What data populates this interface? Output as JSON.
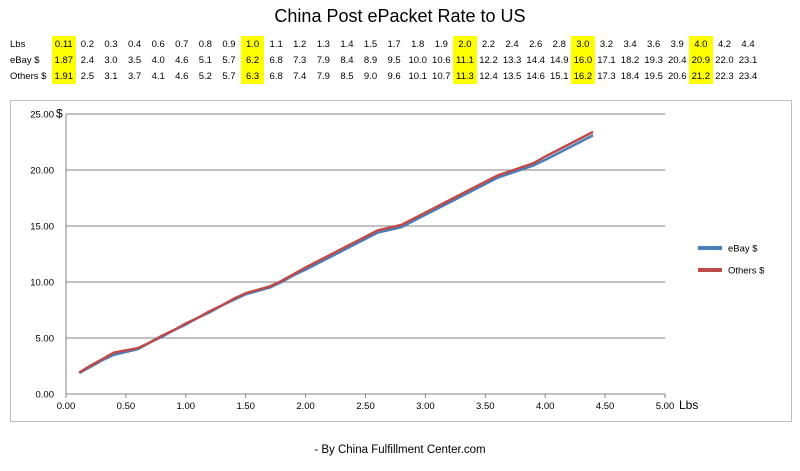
{
  "title": "China Post ePacket Rate to US",
  "footer": "- By China Fulfillment Center.com",
  "table": {
    "row_labels": [
      "Lbs",
      "eBay $",
      "Others $"
    ],
    "lbs": [
      "0.11",
      "0.2",
      "0.3",
      "0.4",
      "0.6",
      "0.7",
      "0.8",
      "0.9",
      "1.0",
      "1.1",
      "1.2",
      "1.3",
      "1.4",
      "1.5",
      "1.7",
      "1.8",
      "1.9",
      "2.0",
      "2.2",
      "2.4",
      "2.6",
      "2.8",
      "3.0",
      "3.2",
      "3.4",
      "3.6",
      "3.9",
      "4.0",
      "4.2",
      "4.4"
    ],
    "ebay": [
      "1.87",
      "2.4",
      "3.0",
      "3.5",
      "4.0",
      "4.6",
      "5.1",
      "5.7",
      "6.2",
      "6.8",
      "7.3",
      "7.9",
      "8.4",
      "8.9",
      "9.5",
      "10.0",
      "10.6",
      "11.1",
      "12.2",
      "13.3",
      "14.4",
      "14.9",
      "16.0",
      "17.1",
      "18.2",
      "19.3",
      "20.4",
      "20.9",
      "22.0",
      "23.1"
    ],
    "others": [
      "1.91",
      "2.5",
      "3.1",
      "3.7",
      "4.1",
      "4.6",
      "5.2",
      "5.7",
      "6.3",
      "6.8",
      "7.4",
      "7.9",
      "8.5",
      "9.0",
      "9.6",
      "10.1",
      "10.7",
      "11.3",
      "12.4",
      "13.5",
      "14.6",
      "15.1",
      "16.2",
      "17.3",
      "18.4",
      "19.5",
      "20.6",
      "21.2",
      "22.3",
      "23.4"
    ],
    "highlight_columns": [
      0,
      8,
      17,
      22,
      27
    ],
    "highlight_color": "#ffff00"
  },
  "chart_data": {
    "type": "line",
    "xlabel": "Lbs",
    "ylabel": "$",
    "xlim": [
      0,
      5
    ],
    "ylim": [
      0,
      25
    ],
    "x_ticks": [
      "0.00",
      "0.50",
      "1.00",
      "1.50",
      "2.00",
      "2.50",
      "3.00",
      "3.50",
      "4.00",
      "4.50",
      "5.00"
    ],
    "y_ticks": [
      "0.00",
      "5.00",
      "10.00",
      "15.00",
      "20.00",
      "25.00"
    ],
    "grid": "horizontal",
    "legend_position": "right",
    "x": [
      0.11,
      0.2,
      0.3,
      0.4,
      0.6,
      0.7,
      0.8,
      0.9,
      1.0,
      1.1,
      1.2,
      1.3,
      1.4,
      1.5,
      1.7,
      1.8,
      1.9,
      2.0,
      2.2,
      2.4,
      2.6,
      2.8,
      3.0,
      3.2,
      3.4,
      3.6,
      3.9,
      4.0,
      4.2,
      4.4
    ],
    "series": [
      {
        "name": "eBay $",
        "color": "#4a7ebb",
        "values": [
          1.87,
          2.4,
          3.0,
          3.5,
          4.0,
          4.6,
          5.1,
          5.7,
          6.2,
          6.8,
          7.3,
          7.9,
          8.4,
          8.9,
          9.5,
          10.0,
          10.6,
          11.1,
          12.2,
          13.3,
          14.4,
          14.9,
          16.0,
          17.1,
          18.2,
          19.3,
          20.4,
          20.9,
          22.0,
          23.1
        ]
      },
      {
        "name": "Others $",
        "color": "#be4b48",
        "values": [
          1.91,
          2.5,
          3.1,
          3.7,
          4.1,
          4.6,
          5.2,
          5.7,
          6.3,
          6.8,
          7.4,
          7.9,
          8.5,
          9.0,
          9.6,
          10.1,
          10.7,
          11.3,
          12.4,
          13.5,
          14.6,
          15.1,
          16.2,
          17.3,
          18.4,
          19.5,
          20.6,
          21.2,
          22.3,
          23.4
        ]
      }
    ]
  }
}
